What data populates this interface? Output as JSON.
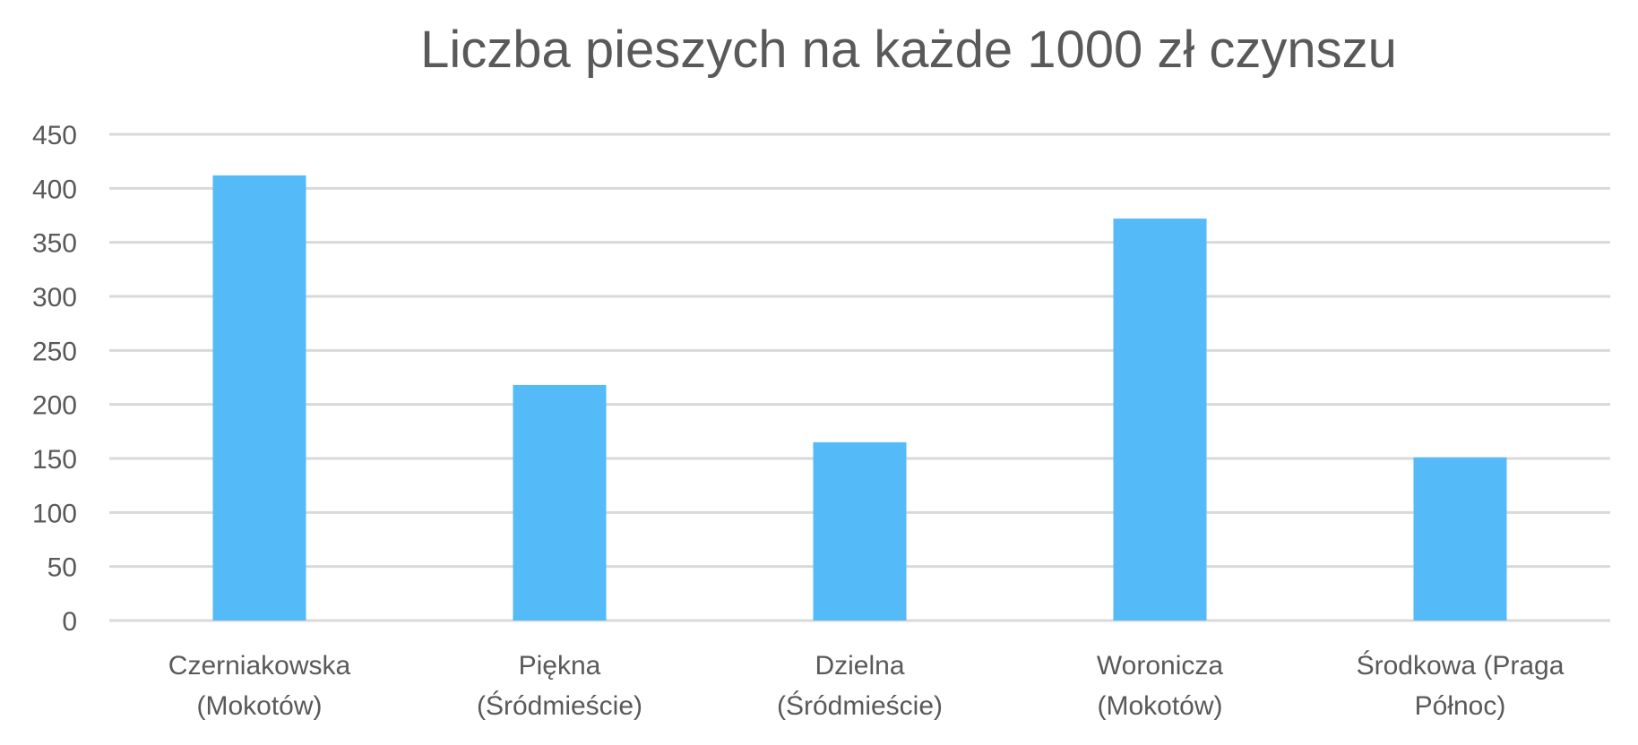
{
  "chart_data": {
    "type": "bar",
    "title": "Liczba pieszych na każde 1000 zł czynszu",
    "xlabel": "",
    "ylabel": "",
    "categories": [
      [
        "Czerniakowska",
        "(Mokotów)"
      ],
      [
        "Piękna",
        "(Śródmieście)"
      ],
      [
        "Dzielna",
        "(Śródmieście)"
      ],
      [
        "Woronicza",
        "(Mokotów)"
      ],
      [
        "Środkowa (Praga",
        "Północ)"
      ]
    ],
    "values": [
      412,
      218,
      165,
      372,
      151
    ],
    "ylim": [
      0,
      450
    ],
    "yticks": [
      0,
      50,
      100,
      150,
      200,
      250,
      300,
      350,
      400,
      450
    ],
    "grid": true,
    "legend": "none",
    "bar_color": "#55baf8",
    "grid_color": "#d9d9d9",
    "text_color": "#595959"
  }
}
